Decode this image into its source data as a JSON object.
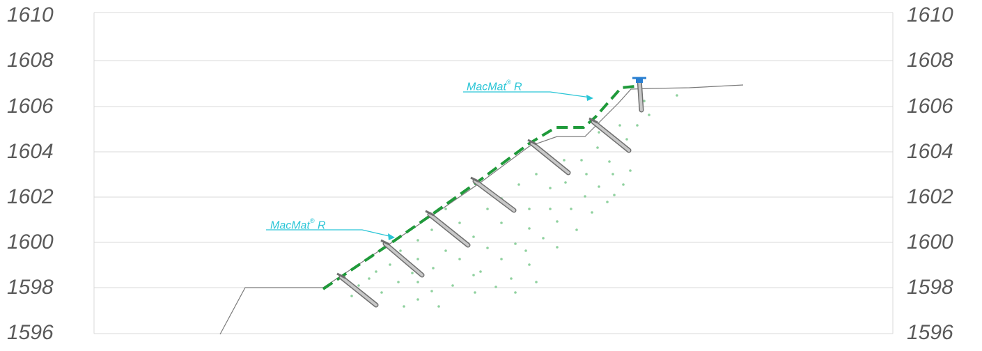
{
  "elevations": [
    "1610",
    "1608",
    "1606",
    "1604",
    "1602",
    "1600",
    "1598",
    "1596"
  ],
  "callouts": [
    {
      "text": "MacMat",
      "mark": "®",
      "suffix": " R"
    },
    {
      "text": "MacMat",
      "mark": "®",
      "suffix": " R"
    }
  ],
  "colors": {
    "grid": "#d9d9d9",
    "ground": "#7a7a7a",
    "mat": "#1f9a3a",
    "callout": "#29c5d6",
    "seed": "#8fd19e",
    "anchor_fill": "#c8c8c8",
    "anchor_stroke": "#6f6f6f",
    "head": "#2a7fd1"
  }
}
